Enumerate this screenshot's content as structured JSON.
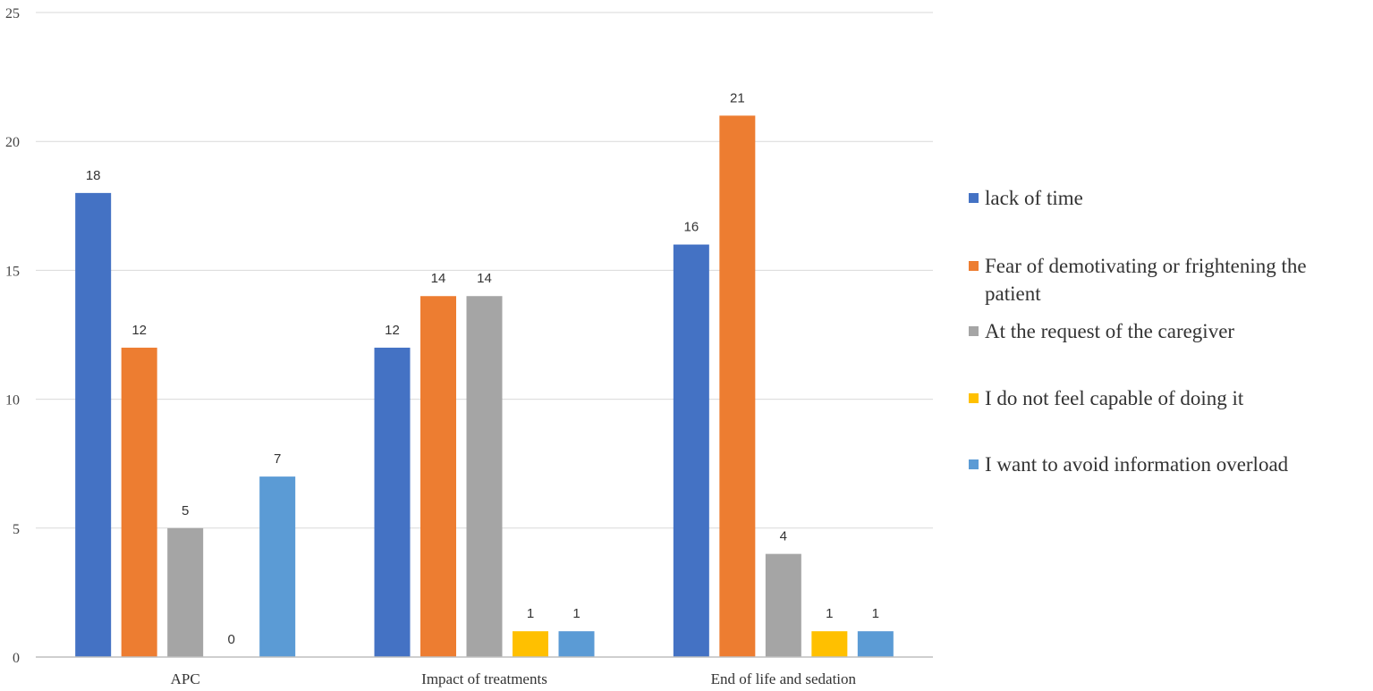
{
  "chart_data": {
    "type": "bar",
    "title": "",
    "xlabel": "",
    "ylabel": "",
    "ylim": [
      0,
      25
    ],
    "yticks": [
      0,
      5,
      10,
      15,
      20,
      25
    ],
    "grid": true,
    "legend_position": "right",
    "categories": [
      "APC",
      "Impact of treatments",
      "End of life and sedation"
    ],
    "series": [
      {
        "name": "lack of time",
        "color": "#4472C4",
        "values": [
          18,
          12,
          16
        ]
      },
      {
        "name": "Fear of demotivating or frightening the patient",
        "name_lines": [
          "Fear of demotivating or frightening the",
          "patient"
        ],
        "color": "#ED7D31",
        "values": [
          12,
          14,
          21
        ]
      },
      {
        "name": "At the request of the caregiver",
        "color": "#A5A5A5",
        "values": [
          5,
          14,
          4
        ]
      },
      {
        "name": "I do not feel capable of doing it",
        "color": "#FFC000",
        "values": [
          0,
          1,
          1
        ]
      },
      {
        "name": "I want to avoid information overload",
        "color": "#5B9BD5",
        "values": [
          7,
          1,
          1
        ]
      }
    ]
  }
}
